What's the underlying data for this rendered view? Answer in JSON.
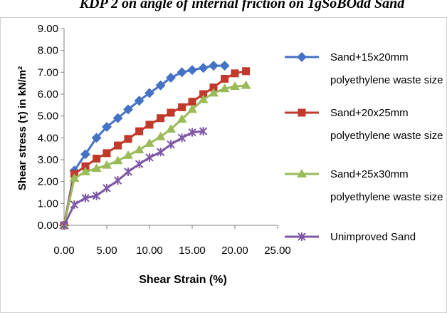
{
  "title": "KDP 2 on angle of internal friction on 1gSoBOdd Sand",
  "chart_data": {
    "type": "line",
    "xlabel": "Shear Strain (%)",
    "ylabel": "Shear stress (τ) in kN/m²",
    "xlim": [
      0,
      25
    ],
    "ylim": [
      0,
      9
    ],
    "x_ticks": [
      "0.00",
      "5.00",
      "10.00",
      "15.00",
      "20.00",
      "25.00"
    ],
    "y_ticks": [
      "0.00",
      "1.00",
      "2.00",
      "3.00",
      "4.00",
      "5.00",
      "6.00",
      "7.00",
      "8.00",
      "9.00"
    ],
    "grid": false,
    "legend_position": "right",
    "series": [
      {
        "name_line1": "Sand+15x20mm",
        "name_line2": "polyethylene waste size",
        "color": "#4472C4",
        "marker": "diamond",
        "x": [
          0,
          1.2,
          2.5,
          3.8,
          5.0,
          6.3,
          7.5,
          8.8,
          10.0,
          11.3,
          12.5,
          13.8,
          15.0,
          16.3,
          17.5,
          18.8
        ],
        "y": [
          0,
          2.5,
          3.25,
          4.0,
          4.5,
          4.9,
          5.3,
          5.7,
          6.05,
          6.4,
          6.75,
          7.0,
          7.1,
          7.2,
          7.3,
          7.3
        ]
      },
      {
        "name_line1": "Sand+20x25mm",
        "name_line2": "polyethylene waste size",
        "color": "#C0392B",
        "marker": "square",
        "x": [
          0,
          1.2,
          2.5,
          3.8,
          5.0,
          6.3,
          7.5,
          8.8,
          10.0,
          11.3,
          12.5,
          13.8,
          15.0,
          16.3,
          17.5,
          18.8,
          20.0,
          21.3
        ],
        "y": [
          0,
          2.35,
          2.7,
          3.05,
          3.3,
          3.65,
          3.95,
          4.3,
          4.6,
          4.9,
          5.15,
          5.4,
          5.65,
          6.0,
          6.3,
          6.7,
          6.95,
          7.05
        ]
      },
      {
        "name_line1": "Sand+25x30mm",
        "name_line2": "polyethylene waste size",
        "color": "#9BBB59",
        "marker": "triangle",
        "x": [
          0,
          1.2,
          2.5,
          3.8,
          5.0,
          6.3,
          7.5,
          8.8,
          10.0,
          11.3,
          12.5,
          13.8,
          15.0,
          16.3,
          17.5,
          18.8,
          20.0,
          21.3
        ],
        "y": [
          0,
          2.15,
          2.45,
          2.6,
          2.75,
          2.95,
          3.2,
          3.45,
          3.75,
          4.05,
          4.4,
          4.85,
          5.3,
          5.75,
          6.05,
          6.25,
          6.35,
          6.4
        ]
      },
      {
        "name": "Unimproved Sand",
        "color": "#7E57A6",
        "marker": "x",
        "x": [
          0,
          1.2,
          2.5,
          3.8,
          5.0,
          6.3,
          7.5,
          8.8,
          10.0,
          11.3,
          12.5,
          13.8,
          15.0,
          16.3
        ],
        "y": [
          0,
          0.95,
          1.25,
          1.35,
          1.7,
          2.05,
          2.45,
          2.8,
          3.1,
          3.35,
          3.7,
          4.0,
          4.25,
          4.3
        ]
      }
    ]
  }
}
